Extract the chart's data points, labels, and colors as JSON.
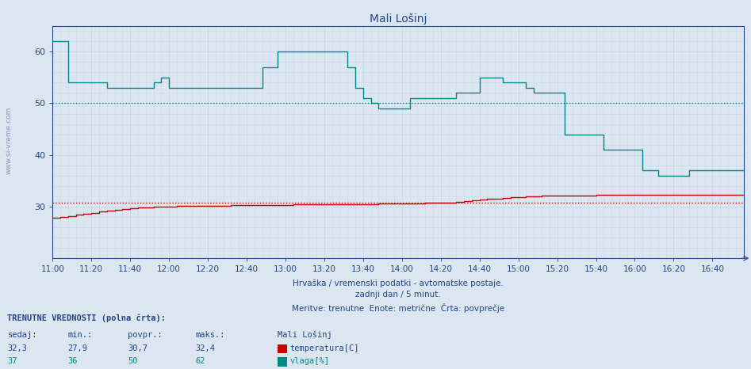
{
  "title": "Mali Lošinj",
  "bg_color": "#dce6f0",
  "grid_color_major": "#c0cce0",
  "grid_color_minor": "#ccd8ec",
  "red_dotted_color": "#cc0000",
  "cyan_dotted_color": "#009999",
  "temp_color": "#cc0000",
  "humid_color": "#008888",
  "axis_color": "#224488",
  "title_color": "#224488",
  "label_color": "#224488",
  "watermark_color": "#8899bb",
  "xlabel_lines": [
    "Hrvaška / vremenski podatki - avtomatske postaje.",
    "zadnji dan / 5 minut.",
    "Meritve: trenutne  Enote: metrične  Črta: povprečje"
  ],
  "ylim": [
    20,
    65
  ],
  "yticks": [
    30,
    40,
    50,
    60
  ],
  "temp_avg_line": 30.7,
  "humid_avg_line": 50.0,
  "time_labels": [
    "11:00",
    "11:20",
    "11:40",
    "12:00",
    "12:20",
    "12:40",
    "13:00",
    "13:20",
    "13:40",
    "14:00",
    "14:20",
    "14:40",
    "15:00",
    "15:20",
    "15:40",
    "16:00",
    "16:20",
    "16:40"
  ],
  "temp_data": [
    [
      0,
      27.8
    ],
    [
      4,
      28.0
    ],
    [
      8,
      28.2
    ],
    [
      12,
      28.4
    ],
    [
      16,
      28.6
    ],
    [
      20,
      28.8
    ],
    [
      24,
      29.0
    ],
    [
      28,
      29.2
    ],
    [
      32,
      29.4
    ],
    [
      36,
      29.6
    ],
    [
      40,
      29.7
    ],
    [
      44,
      29.8
    ],
    [
      48,
      29.9
    ],
    [
      52,
      30.0
    ],
    [
      56,
      30.0
    ],
    [
      60,
      30.0
    ],
    [
      64,
      30.1
    ],
    [
      68,
      30.1
    ],
    [
      72,
      30.1
    ],
    [
      76,
      30.2
    ],
    [
      80,
      30.2
    ],
    [
      84,
      30.2
    ],
    [
      88,
      30.2
    ],
    [
      92,
      30.3
    ],
    [
      96,
      30.3
    ],
    [
      100,
      30.3
    ],
    [
      104,
      30.3
    ],
    [
      108,
      30.3
    ],
    [
      112,
      30.3
    ],
    [
      116,
      30.3
    ],
    [
      120,
      30.3
    ],
    [
      124,
      30.4
    ],
    [
      128,
      30.4
    ],
    [
      132,
      30.4
    ],
    [
      136,
      30.5
    ],
    [
      140,
      30.5
    ],
    [
      144,
      30.5
    ],
    [
      148,
      30.5
    ],
    [
      152,
      30.5
    ],
    [
      156,
      30.5
    ],
    [
      160,
      30.5
    ],
    [
      164,
      30.5
    ],
    [
      168,
      30.6
    ],
    [
      172,
      30.6
    ],
    [
      176,
      30.6
    ],
    [
      180,
      30.6
    ],
    [
      184,
      30.6
    ],
    [
      188,
      30.6
    ],
    [
      192,
      30.7
    ],
    [
      196,
      30.7
    ],
    [
      200,
      30.7
    ],
    [
      204,
      30.8
    ],
    [
      208,
      30.9
    ],
    [
      212,
      31.0
    ],
    [
      216,
      31.2
    ],
    [
      220,
      31.3
    ],
    [
      224,
      31.5
    ],
    [
      228,
      31.6
    ],
    [
      232,
      31.7
    ],
    [
      236,
      31.8
    ],
    [
      240,
      31.9
    ],
    [
      244,
      32.0
    ],
    [
      248,
      32.0
    ],
    [
      252,
      32.1
    ],
    [
      256,
      32.1
    ],
    [
      260,
      32.1
    ],
    [
      264,
      32.2
    ],
    [
      268,
      32.2
    ],
    [
      272,
      32.2
    ],
    [
      276,
      32.2
    ],
    [
      280,
      32.3
    ],
    [
      284,
      32.3
    ],
    [
      288,
      32.3
    ],
    [
      292,
      32.3
    ],
    [
      296,
      32.3
    ],
    [
      300,
      32.3
    ],
    [
      304,
      32.3
    ],
    [
      308,
      32.3
    ],
    [
      312,
      32.3
    ],
    [
      316,
      32.3
    ],
    [
      320,
      32.3
    ],
    [
      324,
      32.3
    ],
    [
      328,
      32.3
    ],
    [
      332,
      32.3
    ],
    [
      336,
      32.3
    ],
    [
      340,
      32.3
    ],
    [
      344,
      32.3
    ],
    [
      348,
      32.3
    ],
    [
      352,
      32.3
    ],
    [
      356,
      32.3
    ]
  ],
  "humid_data": [
    [
      0,
      62
    ],
    [
      4,
      62
    ],
    [
      8,
      54
    ],
    [
      12,
      54
    ],
    [
      16,
      54
    ],
    [
      20,
      54
    ],
    [
      24,
      54
    ],
    [
      28,
      53
    ],
    [
      32,
      53
    ],
    [
      36,
      53
    ],
    [
      40,
      53
    ],
    [
      44,
      53
    ],
    [
      48,
      53
    ],
    [
      52,
      54
    ],
    [
      56,
      55
    ],
    [
      60,
      53
    ],
    [
      64,
      53
    ],
    [
      68,
      53
    ],
    [
      72,
      53
    ],
    [
      76,
      53
    ],
    [
      80,
      53
    ],
    [
      84,
      53
    ],
    [
      88,
      53
    ],
    [
      92,
      53
    ],
    [
      96,
      53
    ],
    [
      100,
      53
    ],
    [
      104,
      53
    ],
    [
      108,
      57
    ],
    [
      112,
      57
    ],
    [
      116,
      60
    ],
    [
      120,
      60
    ],
    [
      124,
      60
    ],
    [
      128,
      60
    ],
    [
      132,
      60
    ],
    [
      136,
      60
    ],
    [
      140,
      60
    ],
    [
      144,
      60
    ],
    [
      148,
      60
    ],
    [
      152,
      57
    ],
    [
      156,
      53
    ],
    [
      160,
      51
    ],
    [
      164,
      50
    ],
    [
      168,
      49
    ],
    [
      172,
      49
    ],
    [
      176,
      49
    ],
    [
      180,
      49
    ],
    [
      184,
      51
    ],
    [
      188,
      51
    ],
    [
      192,
      51
    ],
    [
      196,
      51
    ],
    [
      200,
      51
    ],
    [
      204,
      51
    ],
    [
      208,
      52
    ],
    [
      212,
      52
    ],
    [
      216,
      52
    ],
    [
      220,
      55
    ],
    [
      224,
      55
    ],
    [
      228,
      55
    ],
    [
      232,
      54
    ],
    [
      236,
      54
    ],
    [
      240,
      54
    ],
    [
      244,
      53
    ],
    [
      248,
      52
    ],
    [
      252,
      52
    ],
    [
      256,
      52
    ],
    [
      260,
      52
    ],
    [
      264,
      44
    ],
    [
      268,
      44
    ],
    [
      272,
      44
    ],
    [
      276,
      44
    ],
    [
      280,
      44
    ],
    [
      284,
      41
    ],
    [
      288,
      41
    ],
    [
      292,
      41
    ],
    [
      296,
      41
    ],
    [
      300,
      41
    ],
    [
      304,
      37
    ],
    [
      308,
      37
    ],
    [
      312,
      36
    ],
    [
      316,
      36
    ],
    [
      320,
      36
    ],
    [
      324,
      36
    ],
    [
      328,
      37
    ],
    [
      332,
      37
    ],
    [
      336,
      37
    ],
    [
      340,
      37
    ],
    [
      344,
      37
    ],
    [
      348,
      37
    ],
    [
      352,
      37
    ],
    [
      356,
      37
    ]
  ],
  "legend_items": [
    {
      "label": "temperatura[C]",
      "color": "#cc0000"
    },
    {
      "label": "vlaga[%]",
      "color": "#008888"
    }
  ],
  "footer_label1": "TRENUTNE VREDNOSTI (polna črta):",
  "footer_cols": [
    "sedaj:",
    "min.:",
    "povpr.:",
    "maks.:"
  ],
  "footer_temp": [
    "32,3",
    "27,9",
    "30,7",
    "32,4"
  ],
  "footer_humid": [
    "37",
    "36",
    "50",
    "62"
  ],
  "footer_station": "Mali Lošinj"
}
